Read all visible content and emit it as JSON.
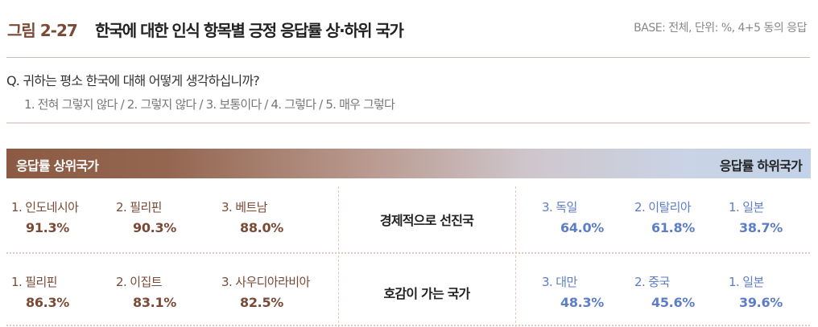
{
  "header": {
    "figure_label": "그림 2-27",
    "title": "한국에 대한 인식 항목별 긍정 응답률 상·하위 국가",
    "base_note": "BASE: 전체, 단위: %, 4+5 동의 응답"
  },
  "question": {
    "text": "Q. 귀하는 평소 한국에 대해 어떻게 생각하십니까?",
    "options": "1. 전혀 그렇지 않다 / 2. 그렇지 않다 / 3. 보통이다 / 4. 그렇다 / 5. 매우 그렇다"
  },
  "banner": {
    "top_label": "응답률 상위국가",
    "bottom_label": "응답률 하위국가"
  },
  "colors": {
    "top": "#7a4a36",
    "bottom": "#5d7ec6"
  },
  "rows": [
    {
      "category": "경제적으로 선진국",
      "top": [
        {
          "name": "1. 인도네시아",
          "value": "91.3%"
        },
        {
          "name": "2. 필리핀",
          "value": "90.3%"
        },
        {
          "name": "3. 베트남",
          "value": "88.0%"
        }
      ],
      "bottom": [
        {
          "name": "3. 독일",
          "value": "64.0%"
        },
        {
          "name": "2. 이탈리아",
          "value": "61.8%"
        },
        {
          "name": "1. 일본",
          "value": "38.7%"
        }
      ]
    },
    {
      "category": "호감이 가는 국가",
      "top": [
        {
          "name": "1. 필리핀",
          "value": "86.3%"
        },
        {
          "name": "2. 이집트",
          "value": "83.1%"
        },
        {
          "name": "3. 사우디아라비아",
          "value": "82.5%"
        }
      ],
      "bottom": [
        {
          "name": "3. 대만",
          "value": "48.3%"
        },
        {
          "name": "2. 중국",
          "value": "45.6%"
        },
        {
          "name": "1. 일본",
          "value": "39.6%"
        }
      ]
    }
  ]
}
